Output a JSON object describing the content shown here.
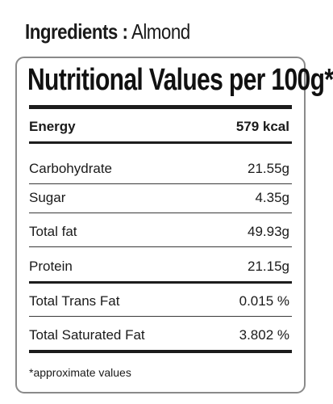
{
  "ingredients": {
    "label": "Ingredients :",
    "value": "Almond"
  },
  "panel": {
    "heading": "Nutritional Values per 100g*",
    "rows": [
      {
        "label": "Energy",
        "value": "579 kcal"
      },
      {
        "label": "Carbohydrate",
        "value": "21.55g"
      },
      {
        "label": "Sugar",
        "value": "4.35g"
      },
      {
        "label": "Total fat",
        "value": "49.93g"
      },
      {
        "label": "Protein",
        "value": "21.15g"
      },
      {
        "label": "Total Trans Fat",
        "value": "0.015 %"
      },
      {
        "label": "Total Saturated Fat",
        "value": "3.802 %"
      }
    ],
    "footnote": "*approximate values"
  }
}
